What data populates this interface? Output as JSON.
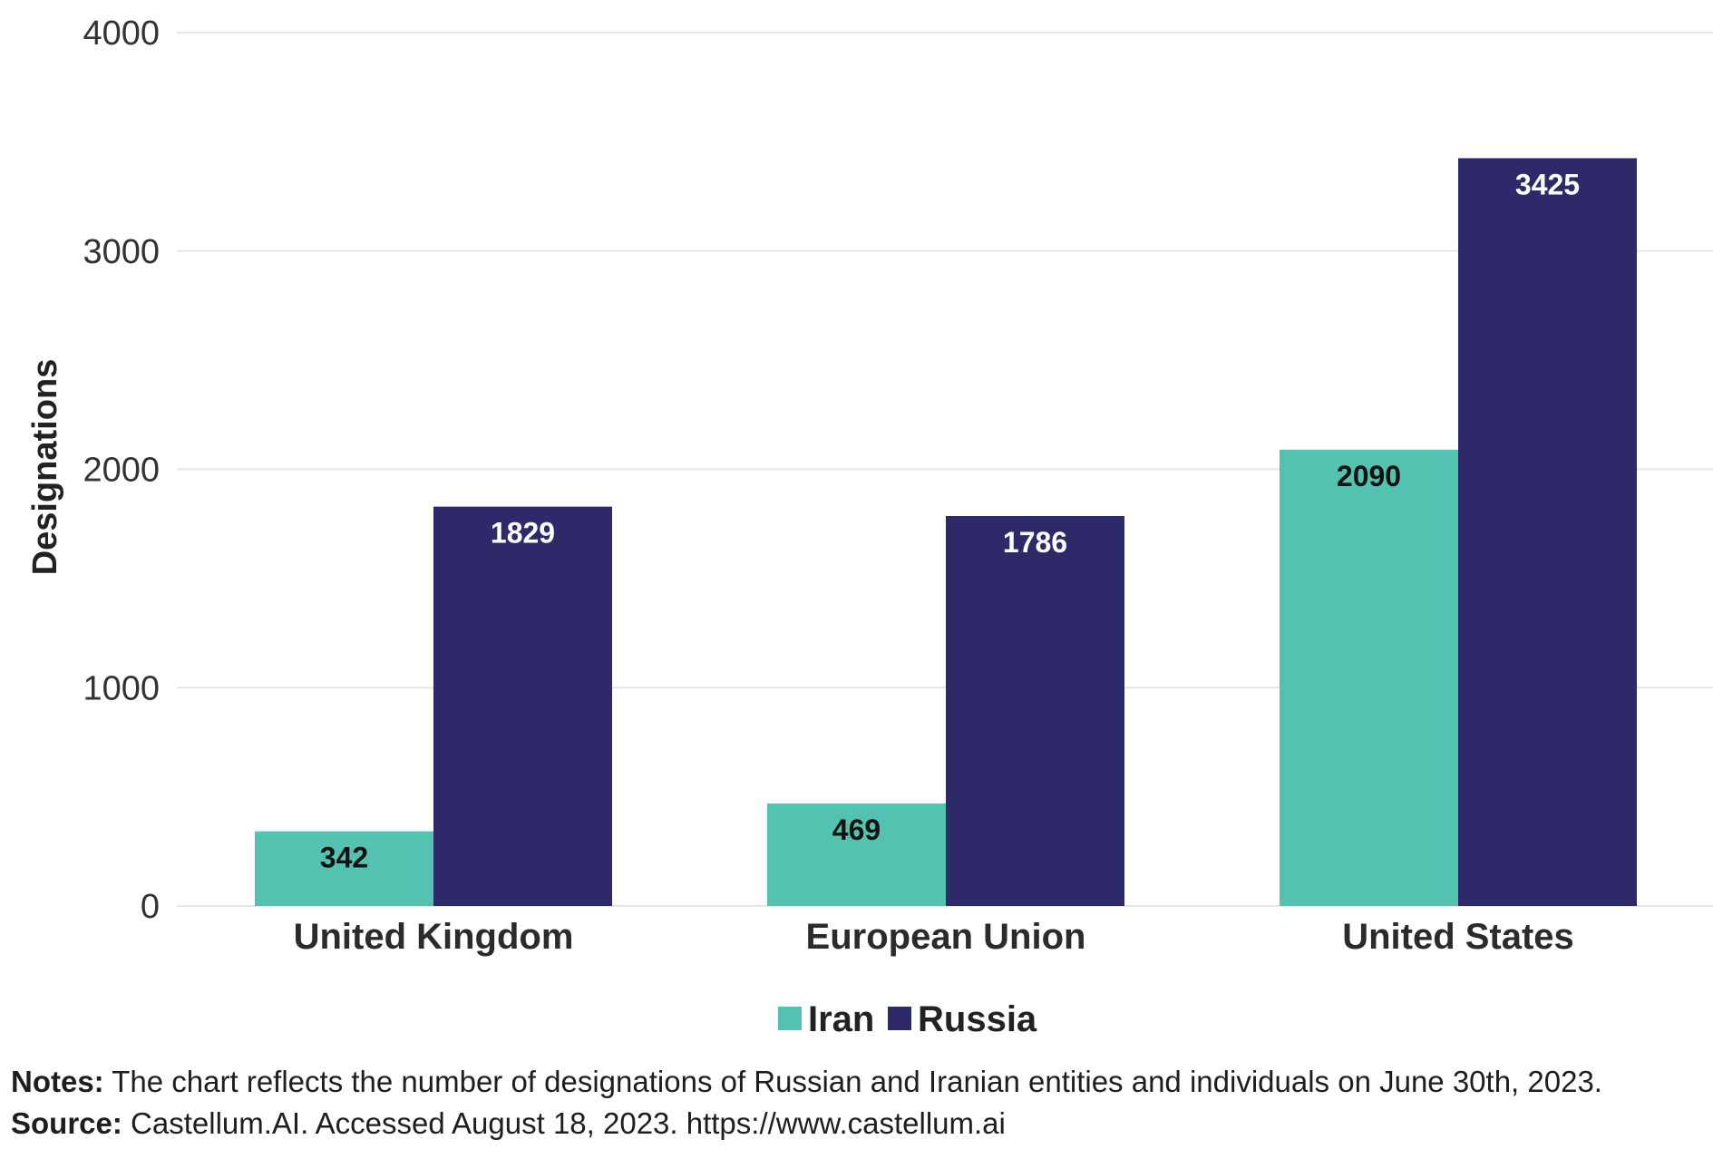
{
  "chart_data": {
    "type": "bar",
    "title": "",
    "xlabel": "",
    "ylabel": "Designations",
    "ylim": [
      0,
      4000
    ],
    "yticks": [
      0,
      1000,
      2000,
      3000,
      4000
    ],
    "grid": true,
    "legend_position": "bottom-center",
    "categories": [
      "United Kingdom",
      "European Union",
      "United States"
    ],
    "series": [
      {
        "name": "Iran",
        "color": "#53c2b0",
        "label_color": "#111111",
        "values": [
          342,
          469,
          2090
        ]
      },
      {
        "name": "Russia",
        "color": "#2e2a69",
        "label_color": "#ffffff",
        "values": [
          1829,
          1786,
          3425
        ]
      }
    ]
  },
  "notes": {
    "label": "Notes:",
    "text": " The chart reflects the number of designations of Russian and Iranian entities and individuals on June 30th, 2023."
  },
  "source": {
    "label": "Source:",
    "text": " Castellum.AI. Accessed August 18, 2023. https://www.castellum.ai"
  }
}
